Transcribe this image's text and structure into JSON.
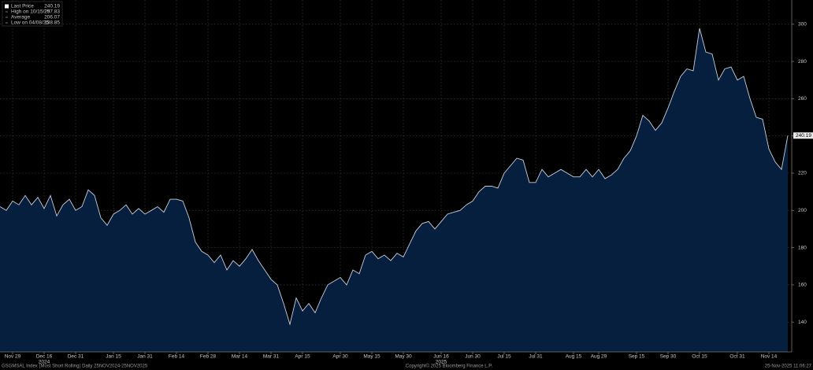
{
  "chart_data": {
    "type": "area",
    "legend": [
      {
        "label": "Last Price",
        "value": 240.19
      },
      {
        "label": "High on 10/15/25",
        "value": 297.83
      },
      {
        "label": "Average",
        "value": 206.07
      },
      {
        "label": "Low on 04/08/25",
        "value": 138.85
      }
    ],
    "footer": [
      "GSGMSAL Index (Most Short Rolling) Daily 25NOV2024-25NOV2025",
      "Copyright© 2025 Bloomberg Finance L.P.",
      "25-Nov-2025 11:06:27"
    ],
    "year_labels": [
      {
        "year": "2024",
        "under": "Dec 16"
      },
      {
        "year": "2025",
        "under": "Jun 16"
      }
    ],
    "categories": [
      null,
      null,
      "Nov 29",
      null,
      null,
      null,
      null,
      "Dec 16",
      null,
      null,
      null,
      null,
      "Dec 31",
      null,
      null,
      null,
      null,
      null,
      "Jan 15",
      null,
      null,
      null,
      null,
      "Jan 31",
      null,
      null,
      null,
      null,
      "Feb 14",
      null,
      null,
      null,
      null,
      "Feb 28",
      null,
      null,
      null,
      null,
      "Mar 14",
      null,
      null,
      null,
      null,
      "Mar 31",
      null,
      null,
      null,
      null,
      "Apr 15",
      null,
      null,
      null,
      null,
      null,
      "Apr 30",
      null,
      null,
      null,
      null,
      "May 15",
      null,
      null,
      null,
      null,
      "May 30",
      null,
      null,
      null,
      null,
      null,
      "Jun 16",
      null,
      null,
      null,
      null,
      "Jun 30",
      null,
      null,
      null,
      null,
      "Jul 15",
      null,
      null,
      null,
      null,
      "Jul 31",
      null,
      null,
      null,
      null,
      null,
      "Aug 15",
      null,
      null,
      null,
      "Aug 29",
      null,
      null,
      null,
      null,
      null,
      "Sep 15",
      null,
      null,
      null,
      null,
      "Sep 30",
      null,
      null,
      null,
      null,
      "Oct 15",
      null,
      null,
      null,
      null,
      null,
      "Oct 31",
      null,
      null,
      null,
      null,
      "Nov 14",
      null,
      null,
      null
    ],
    "series": [
      {
        "name": "Last Price",
        "color": "#c9ced8",
        "fill": "#061f3f",
        "values": [
          202,
          200,
          205,
          203,
          208,
          203,
          207,
          201,
          208,
          197,
          203,
          206,
          200,
          202,
          211,
          208,
          196,
          192,
          198,
          200,
          203,
          198,
          201,
          198,
          200,
          202,
          199,
          206,
          206,
          205,
          196,
          183,
          178,
          176,
          172,
          176,
          168,
          173,
          170,
          174,
          179,
          173,
          168,
          163,
          160,
          150,
          138.85,
          153,
          146,
          150,
          145,
          153,
          160,
          162,
          164,
          160,
          168,
          166,
          176,
          178,
          174,
          176,
          173,
          177,
          175,
          182,
          189,
          193,
          194,
          190,
          194,
          198,
          199,
          200,
          203,
          205,
          210,
          213,
          213,
          212,
          220,
          224,
          228,
          227,
          215,
          215,
          222,
          218,
          220,
          222,
          220,
          218,
          218,
          222,
          218,
          222,
          217,
          219,
          222,
          228,
          232,
          240,
          251,
          248,
          243,
          247,
          255,
          264,
          272,
          276,
          275,
          297.83,
          285,
          284,
          270,
          276,
          277,
          270,
          272,
          260,
          250,
          249,
          233,
          226,
          222,
          240.19
        ]
      }
    ],
    "ylim": [
      124,
      313
    ],
    "yticks": [
      140,
      160,
      180,
      200,
      220,
      240,
      260,
      280,
      300
    ],
    "grid": true
  }
}
